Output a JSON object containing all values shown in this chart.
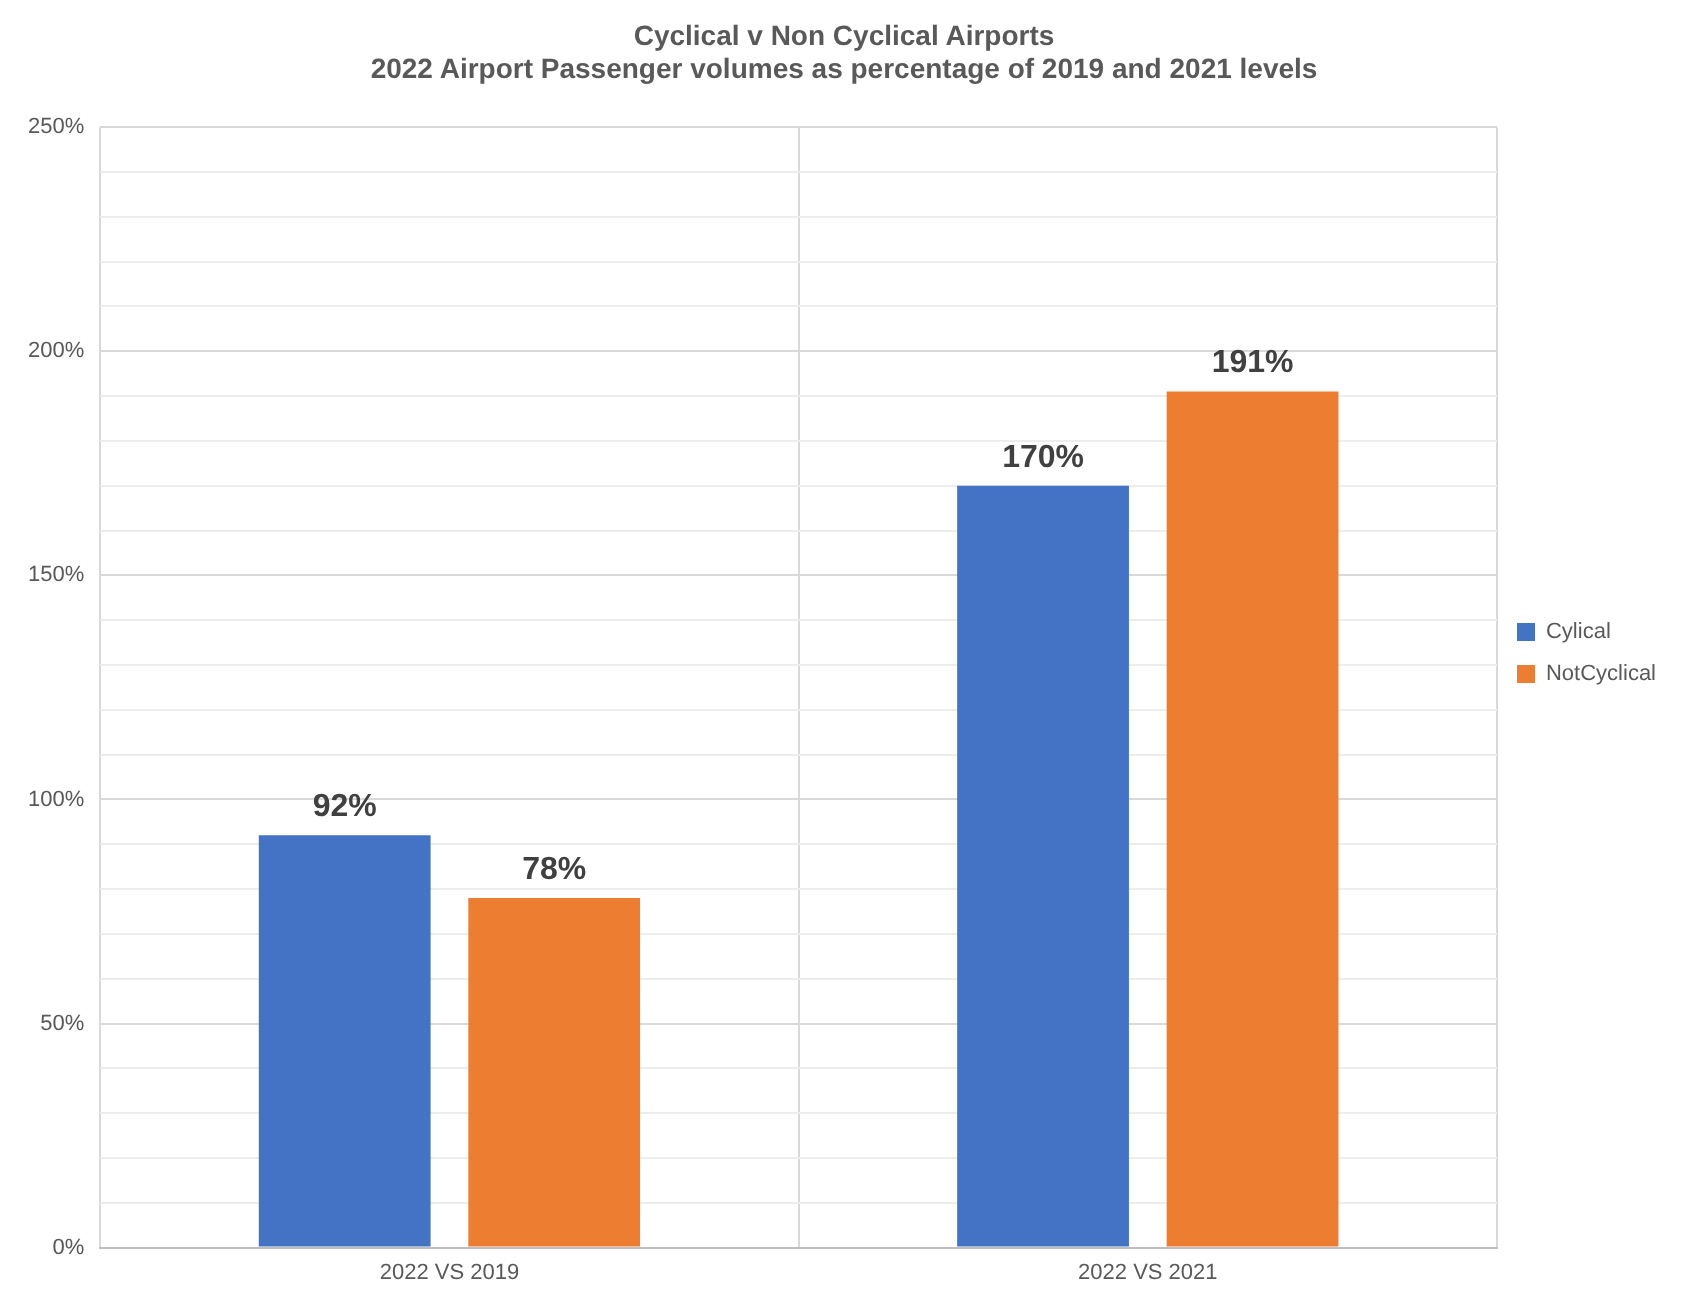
{
  "chart_data": {
    "type": "bar",
    "title": "Cyclical v Non Cyclical Airports",
    "subtitle": "2022 Airport Passenger volumes as percentage of 2019 and 2021 levels",
    "categories": [
      "2022 VS 2019",
      "2022 VS 2021"
    ],
    "series": [
      {
        "name": "Cylical",
        "color": "#4472c4",
        "values": [
          92,
          170
        ],
        "value_labels": [
          "92%",
          "170%"
        ]
      },
      {
        "name": "NotCyclical",
        "color": "#ed7d31",
        "values": [
          78,
          191
        ],
        "value_labels": [
          "78%",
          "191%"
        ]
      }
    ],
    "ylim": [
      0,
      250
    ],
    "yticks": [
      {
        "value": 0,
        "label": "0%"
      },
      {
        "value": 10,
        "label": null
      },
      {
        "value": 20,
        "label": null
      },
      {
        "value": 30,
        "label": null
      },
      {
        "value": 40,
        "label": null
      },
      {
        "value": 50,
        "label": "50%"
      },
      {
        "value": 60,
        "label": null
      },
      {
        "value": 70,
        "label": null
      },
      {
        "value": 80,
        "label": null
      },
      {
        "value": 90,
        "label": null
      },
      {
        "value": 100,
        "label": "100%"
      },
      {
        "value": 110,
        "label": null
      },
      {
        "value": 120,
        "label": null
      },
      {
        "value": 130,
        "label": null
      },
      {
        "value": 140,
        "label": null
      },
      {
        "value": 150,
        "label": "150%"
      },
      {
        "value": 160,
        "label": null
      },
      {
        "value": 170,
        "label": null
      },
      {
        "value": 180,
        "label": null
      },
      {
        "value": 190,
        "label": null
      },
      {
        "value": 200,
        "label": "200%"
      },
      {
        "value": 210,
        "label": null
      },
      {
        "value": 220,
        "label": null
      },
      {
        "value": 230,
        "label": null
      },
      {
        "value": 240,
        "label": null
      },
      {
        "value": 250,
        "label": "250%"
      }
    ],
    "grid": true,
    "legend": "right"
  }
}
